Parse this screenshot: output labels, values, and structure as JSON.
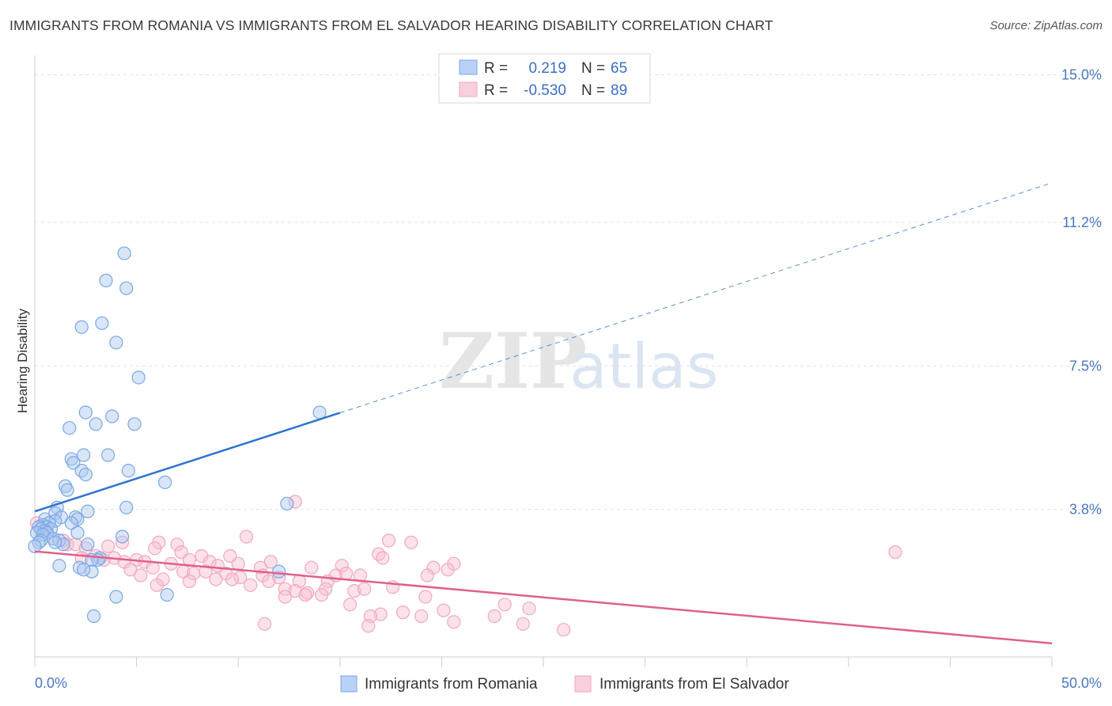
{
  "title": "IMMIGRANTS FROM ROMANIA VS IMMIGRANTS FROM EL SALVADOR HEARING DISABILITY CORRELATION CHART",
  "source": "Source: ZipAtlas.com",
  "watermark": {
    "zip": "ZIP",
    "atlas": "atlas"
  },
  "legend_top": [
    {
      "r_label": "R =",
      "r_value": "0.219",
      "n_label": "N =",
      "n_value": "65",
      "color": "#7aa7e6"
    },
    {
      "r_label": "R =",
      "r_value": "-0.530",
      "n_label": "N =",
      "n_value": "89",
      "color": "#f3a6bf"
    }
  ],
  "chart_data": {
    "type": "scatter",
    "title": "IMMIGRANTS FROM ROMANIA VS IMMIGRANTS FROM EL SALVADOR HEARING DISABILITY CORRELATION CHART",
    "xlabel": "",
    "ylabel": "Hearing Disability",
    "xlim": [
      0,
      50
    ],
    "ylim": [
      0,
      15.5
    ],
    "x_ticks": [
      "0.0%",
      "50.0%"
    ],
    "y_ticks": [
      {
        "value": 3.8,
        "label": "3.8%"
      },
      {
        "value": 7.5,
        "label": "7.5%"
      },
      {
        "value": 11.2,
        "label": "11.2%"
      },
      {
        "value": 15.0,
        "label": "15.0%"
      }
    ],
    "series": [
      {
        "name": "Immigrants from Romania",
        "color": "#7aa7e6",
        "line_color": "#2f74d0",
        "trend": {
          "x0": 0,
          "y0": 3.75,
          "x1_solid": 15,
          "x1": 50,
          "slope": 0.1693
        },
        "points": [
          [
            4.4,
            10.4
          ],
          [
            3.5,
            9.7
          ],
          [
            4.5,
            9.5
          ],
          [
            3.3,
            8.6
          ],
          [
            2.3,
            8.5
          ],
          [
            4.0,
            8.1
          ],
          [
            5.1,
            7.2
          ],
          [
            2.5,
            6.3
          ],
          [
            3.8,
            6.2
          ],
          [
            14.0,
            6.3
          ],
          [
            3.0,
            6.0
          ],
          [
            4.9,
            6.0
          ],
          [
            1.7,
            5.9
          ],
          [
            2.4,
            5.2
          ],
          [
            3.6,
            5.2
          ],
          [
            1.8,
            5.1
          ],
          [
            1.9,
            5.0
          ],
          [
            2.3,
            4.8
          ],
          [
            4.6,
            4.8
          ],
          [
            2.5,
            4.7
          ],
          [
            6.4,
            4.5
          ],
          [
            1.5,
            4.4
          ],
          [
            1.6,
            4.3
          ],
          [
            12.4,
            3.95
          ],
          [
            4.5,
            3.85
          ],
          [
            1.1,
            3.85
          ],
          [
            2.6,
            3.75
          ],
          [
            1.0,
            3.7
          ],
          [
            2.0,
            3.6
          ],
          [
            1.3,
            3.6
          ],
          [
            2.1,
            3.55
          ],
          [
            0.5,
            3.55
          ],
          [
            1.0,
            3.5
          ],
          [
            0.7,
            3.45
          ],
          [
            1.8,
            3.45
          ],
          [
            0.4,
            3.4
          ],
          [
            0.6,
            3.35
          ],
          [
            0.2,
            3.35
          ],
          [
            0.3,
            3.3
          ],
          [
            0.8,
            3.3
          ],
          [
            0.5,
            3.25
          ],
          [
            0.1,
            3.2
          ],
          [
            0.6,
            3.2
          ],
          [
            2.1,
            3.2
          ],
          [
            0.4,
            3.15
          ],
          [
            4.3,
            3.1
          ],
          [
            0.9,
            3.05
          ],
          [
            0.3,
            3.0
          ],
          [
            1.2,
            3.0
          ],
          [
            0.2,
            2.95
          ],
          [
            2.6,
            2.9
          ],
          [
            1.4,
            2.9
          ],
          [
            0.0,
            2.85
          ],
          [
            3.2,
            2.55
          ],
          [
            3.1,
            2.5
          ],
          [
            2.8,
            2.5
          ],
          [
            1.2,
            2.35
          ],
          [
            2.2,
            2.3
          ],
          [
            2.8,
            2.2
          ],
          [
            12.0,
            2.2
          ],
          [
            2.4,
            2.25
          ],
          [
            6.5,
            1.6
          ],
          [
            4.0,
            1.55
          ],
          [
            2.9,
            1.05
          ],
          [
            1.0,
            2.95
          ]
        ]
      },
      {
        "name": "Immigrants from El Salvador",
        "color": "#f3a6bf",
        "line_color": "#e0608d",
        "trend": {
          "x0": 0,
          "y0": 2.72,
          "x1": 50,
          "y1": 0.35
        },
        "points": [
          [
            12.8,
            4.0
          ],
          [
            0.1,
            3.45
          ],
          [
            0.3,
            3.3
          ],
          [
            10.4,
            3.1
          ],
          [
            17.4,
            3.0
          ],
          [
            18.5,
            2.95
          ],
          [
            6.1,
            2.95
          ],
          [
            7.0,
            2.9
          ],
          [
            0.6,
            3.2
          ],
          [
            1.4,
            3.0
          ],
          [
            1.6,
            2.9
          ],
          [
            3.6,
            2.85
          ],
          [
            4.3,
            2.95
          ],
          [
            2.0,
            2.9
          ],
          [
            2.5,
            2.8
          ],
          [
            5.9,
            2.8
          ],
          [
            7.2,
            2.7
          ],
          [
            8.2,
            2.6
          ],
          [
            9.6,
            2.6
          ],
          [
            16.9,
            2.65
          ],
          [
            17.1,
            2.55
          ],
          [
            42.3,
            2.7
          ],
          [
            2.3,
            2.55
          ],
          [
            3.0,
            2.6
          ],
          [
            3.4,
            2.5
          ],
          [
            3.9,
            2.55
          ],
          [
            4.4,
            2.45
          ],
          [
            5.0,
            2.5
          ],
          [
            5.4,
            2.45
          ],
          [
            6.7,
            2.4
          ],
          [
            7.6,
            2.5
          ],
          [
            8.6,
            2.45
          ],
          [
            9.0,
            2.35
          ],
          [
            10.0,
            2.4
          ],
          [
            11.1,
            2.3
          ],
          [
            11.6,
            2.45
          ],
          [
            13.6,
            2.3
          ],
          [
            15.1,
            2.35
          ],
          [
            19.6,
            2.3
          ],
          [
            20.6,
            2.4
          ],
          [
            20.3,
            2.25
          ],
          [
            5.8,
            2.3
          ],
          [
            4.7,
            2.25
          ],
          [
            7.3,
            2.2
          ],
          [
            7.8,
            2.15
          ],
          [
            8.4,
            2.2
          ],
          [
            9.4,
            2.15
          ],
          [
            10.1,
            2.05
          ],
          [
            11.2,
            2.1
          ],
          [
            12.0,
            2.05
          ],
          [
            13.0,
            1.95
          ],
          [
            14.4,
            1.95
          ],
          [
            14.8,
            2.1
          ],
          [
            15.3,
            2.15
          ],
          [
            16.0,
            2.1
          ],
          [
            19.3,
            2.1
          ],
          [
            6.3,
            2.0
          ],
          [
            8.9,
            2.0
          ],
          [
            9.7,
            2.0
          ],
          [
            10.6,
            1.85
          ],
          [
            11.5,
            1.95
          ],
          [
            5.2,
            2.1
          ],
          [
            6.0,
            1.85
          ],
          [
            7.6,
            1.95
          ],
          [
            12.3,
            1.75
          ],
          [
            12.8,
            1.7
          ],
          [
            13.4,
            1.65
          ],
          [
            14.3,
            1.75
          ],
          [
            15.7,
            1.7
          ],
          [
            16.2,
            1.75
          ],
          [
            17.6,
            1.8
          ],
          [
            12.3,
            1.55
          ],
          [
            13.3,
            1.6
          ],
          [
            14.1,
            1.6
          ],
          [
            19.2,
            1.55
          ],
          [
            15.5,
            1.35
          ],
          [
            17.0,
            1.1
          ],
          [
            18.1,
            1.15
          ],
          [
            19.0,
            1.05
          ],
          [
            20.1,
            1.2
          ],
          [
            22.6,
            1.05
          ],
          [
            24.3,
            1.25
          ],
          [
            11.3,
            0.85
          ],
          [
            16.5,
            1.05
          ],
          [
            16.4,
            0.8
          ],
          [
            20.6,
            0.9
          ],
          [
            24.0,
            0.85
          ],
          [
            23.1,
            1.35
          ],
          [
            26.0,
            0.7
          ]
        ]
      }
    ]
  },
  "legend_bottom": [
    {
      "label": "Immigrants from Romania",
      "color": "#7aa7e6"
    },
    {
      "label": "Immigrants from El Salvador",
      "color": "#f3a6bf"
    }
  ]
}
